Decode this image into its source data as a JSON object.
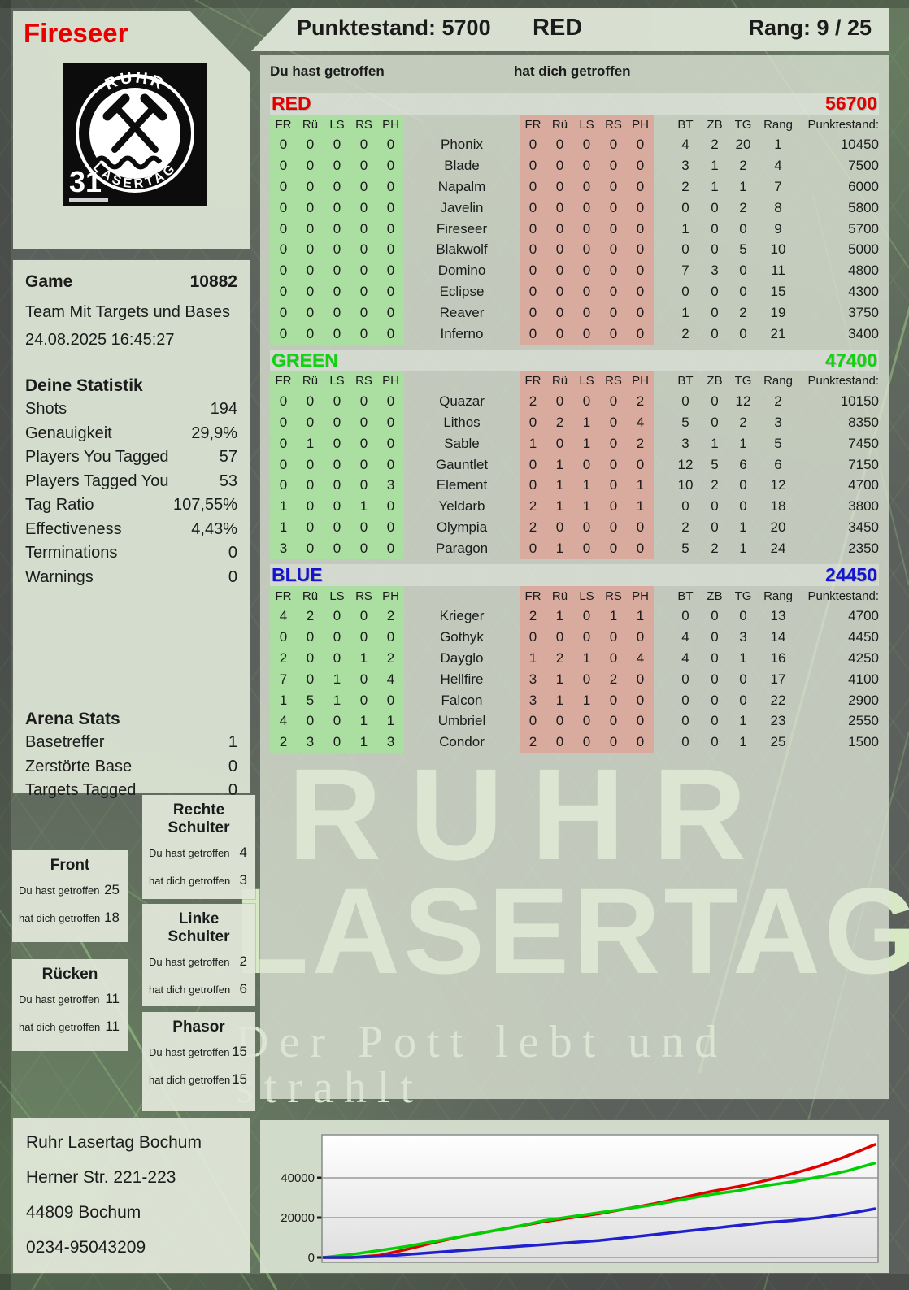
{
  "header": {
    "player_name": "Fireseer",
    "points_label": "Punktestand: 5700",
    "team_name": "RED",
    "rank_label": "Rang: 9 / 25"
  },
  "logo": {
    "top_text": "RUHR",
    "bottom_text": "LASERTAG",
    "badge_number": "31"
  },
  "game_info": {
    "label": "Game",
    "number": "10882",
    "mode": "Team Mit Targets und Bases",
    "datetime": "24.08.2025 16:45:27"
  },
  "your_stats": {
    "title": "Deine Statistik",
    "rows": [
      {
        "label": "Shots",
        "value": "194"
      },
      {
        "label": "Genauigkeit",
        "value": "29,9%"
      },
      {
        "label": "Players You Tagged",
        "value": "57"
      },
      {
        "label": "Players Tagged You",
        "value": "53"
      },
      {
        "label": "Tag Ratio",
        "value": "107,55%"
      },
      {
        "label": "Effectiveness",
        "value": "4,43%"
      },
      {
        "label": "Terminations",
        "value": "0"
      },
      {
        "label": "Warnings",
        "value": "0"
      }
    ]
  },
  "arena_stats": {
    "title": "Arena Stats",
    "rows": [
      {
        "label": "Basetreffer",
        "value": "1"
      },
      {
        "label": "Zerstörte Base",
        "value": "0"
      },
      {
        "label": "Targets Tagged",
        "value": "0"
      }
    ]
  },
  "hit_zones": {
    "du_label": "Du hast getroffen",
    "dich_label": "hat dich getroffen",
    "boxes": [
      {
        "title": "Front",
        "du": "25",
        "dich": "18"
      },
      {
        "title": "Rücken",
        "du": "11",
        "dich": "11"
      },
      {
        "title": "Rechte Schulter",
        "du": "4",
        "dich": "3"
      },
      {
        "title": "Linke Schulter",
        "du": "2",
        "dich": "6"
      },
      {
        "title": "Phasor",
        "du": "15",
        "dich": "15"
      }
    ]
  },
  "address": {
    "lines": [
      "Ruhr Lasertag Bochum",
      "Herner Str. 221-223",
      "44809 Bochum",
      "0234-95043209"
    ]
  },
  "watermark": {
    "line1": "RUHR",
    "line2": "LASERTAG",
    "tagline": "Der Pott lebt und strahlt"
  },
  "scoreboard": {
    "du_col_label": "Du hast getroffen",
    "dich_col_label": "hat dich getroffen",
    "hit_headers": [
      "FR",
      "Rü",
      "LS",
      "RS",
      "PH"
    ],
    "stat_headers": [
      "BT",
      "ZB",
      "TG",
      "Rang",
      "Punktestand:"
    ],
    "teams": [
      {
        "name": "RED",
        "color": "#e10000",
        "total": "56700",
        "players": [
          {
            "name": "Phonix",
            "du": [
              0,
              0,
              0,
              0,
              0
            ],
            "dich": [
              0,
              0,
              0,
              0,
              0
            ],
            "bt": 4,
            "zb": 2,
            "tg": 20,
            "rang": 1,
            "punkte": "10450"
          },
          {
            "name": "Blade",
            "du": [
              0,
              0,
              0,
              0,
              0
            ],
            "dich": [
              0,
              0,
              0,
              0,
              0
            ],
            "bt": 3,
            "zb": 1,
            "tg": 2,
            "rang": 4,
            "punkte": "7500"
          },
          {
            "name": "Napalm",
            "du": [
              0,
              0,
              0,
              0,
              0
            ],
            "dich": [
              0,
              0,
              0,
              0,
              0
            ],
            "bt": 2,
            "zb": 1,
            "tg": 1,
            "rang": 7,
            "punkte": "6000"
          },
          {
            "name": "Javelin",
            "du": [
              0,
              0,
              0,
              0,
              0
            ],
            "dich": [
              0,
              0,
              0,
              0,
              0
            ],
            "bt": 0,
            "zb": 0,
            "tg": 2,
            "rang": 8,
            "punkte": "5800"
          },
          {
            "name": "Fireseer",
            "du": [
              0,
              0,
              0,
              0,
              0
            ],
            "dich": [
              0,
              0,
              0,
              0,
              0
            ],
            "bt": 1,
            "zb": 0,
            "tg": 0,
            "rang": 9,
            "punkte": "5700"
          },
          {
            "name": "Blakwolf",
            "du": [
              0,
              0,
              0,
              0,
              0
            ],
            "dich": [
              0,
              0,
              0,
              0,
              0
            ],
            "bt": 0,
            "zb": 0,
            "tg": 5,
            "rang": 10,
            "punkte": "5000"
          },
          {
            "name": "Domino",
            "du": [
              0,
              0,
              0,
              0,
              0
            ],
            "dich": [
              0,
              0,
              0,
              0,
              0
            ],
            "bt": 7,
            "zb": 3,
            "tg": 0,
            "rang": 11,
            "punkte": "4800"
          },
          {
            "name": "Eclipse",
            "du": [
              0,
              0,
              0,
              0,
              0
            ],
            "dich": [
              0,
              0,
              0,
              0,
              0
            ],
            "bt": 0,
            "zb": 0,
            "tg": 0,
            "rang": 15,
            "punkte": "4300"
          },
          {
            "name": "Reaver",
            "du": [
              0,
              0,
              0,
              0,
              0
            ],
            "dich": [
              0,
              0,
              0,
              0,
              0
            ],
            "bt": 1,
            "zb": 0,
            "tg": 2,
            "rang": 19,
            "punkte": "3750"
          },
          {
            "name": "Inferno",
            "du": [
              0,
              0,
              0,
              0,
              0
            ],
            "dich": [
              0,
              0,
              0,
              0,
              0
            ],
            "bt": 2,
            "zb": 0,
            "tg": 0,
            "rang": 21,
            "punkte": "3400"
          }
        ]
      },
      {
        "name": "GREEN",
        "color": "#10d310",
        "total": "47400",
        "players": [
          {
            "name": "Quazar",
            "du": [
              0,
              0,
              0,
              0,
              0
            ],
            "dich": [
              2,
              0,
              0,
              0,
              2
            ],
            "bt": 0,
            "zb": 0,
            "tg": 12,
            "rang": 2,
            "punkte": "10150"
          },
          {
            "name": "Lithos",
            "du": [
              0,
              0,
              0,
              0,
              0
            ],
            "dich": [
              0,
              2,
              1,
              0,
              4
            ],
            "bt": 5,
            "zb": 0,
            "tg": 2,
            "rang": 3,
            "punkte": "8350"
          },
          {
            "name": "Sable",
            "du": [
              0,
              1,
              0,
              0,
              0
            ],
            "dich": [
              1,
              0,
              1,
              0,
              2
            ],
            "bt": 3,
            "zb": 1,
            "tg": 1,
            "rang": 5,
            "punkte": "7450"
          },
          {
            "name": "Gauntlet",
            "du": [
              0,
              0,
              0,
              0,
              0
            ],
            "dich": [
              0,
              1,
              0,
              0,
              0
            ],
            "bt": 12,
            "zb": 5,
            "tg": 6,
            "rang": 6,
            "punkte": "7150"
          },
          {
            "name": "Element",
            "du": [
              0,
              0,
              0,
              0,
              3
            ],
            "dich": [
              0,
              1,
              1,
              0,
              1
            ],
            "bt": 10,
            "zb": 2,
            "tg": 0,
            "rang": 12,
            "punkte": "4700"
          },
          {
            "name": "Yeldarb",
            "du": [
              1,
              0,
              0,
              1,
              0
            ],
            "dich": [
              2,
              1,
              1,
              0,
              1
            ],
            "bt": 0,
            "zb": 0,
            "tg": 0,
            "rang": 18,
            "punkte": "3800"
          },
          {
            "name": "Olympia",
            "du": [
              1,
              0,
              0,
              0,
              0
            ],
            "dich": [
              2,
              0,
              0,
              0,
              0
            ],
            "bt": 2,
            "zb": 0,
            "tg": 1,
            "rang": 20,
            "punkte": "3450"
          },
          {
            "name": "Paragon",
            "du": [
              3,
              0,
              0,
              0,
              0
            ],
            "dich": [
              0,
              1,
              0,
              0,
              0
            ],
            "bt": 5,
            "zb": 2,
            "tg": 1,
            "rang": 24,
            "punkte": "2350"
          }
        ]
      },
      {
        "name": "BLUE",
        "color": "#1414cf",
        "total": "24450",
        "players": [
          {
            "name": "Krieger",
            "du": [
              4,
              2,
              0,
              0,
              2
            ],
            "dich": [
              2,
              1,
              0,
              1,
              1
            ],
            "bt": 0,
            "zb": 0,
            "tg": 0,
            "rang": 13,
            "punkte": "4700"
          },
          {
            "name": "Gothyk",
            "du": [
              0,
              0,
              0,
              0,
              0
            ],
            "dich": [
              0,
              0,
              0,
              0,
              0
            ],
            "bt": 4,
            "zb": 0,
            "tg": 3,
            "rang": 14,
            "punkte": "4450"
          },
          {
            "name": "Dayglo",
            "du": [
              2,
              0,
              0,
              1,
              2
            ],
            "dich": [
              1,
              2,
              1,
              0,
              4
            ],
            "bt": 4,
            "zb": 0,
            "tg": 1,
            "rang": 16,
            "punkte": "4250"
          },
          {
            "name": "Hellfire",
            "du": [
              7,
              0,
              1,
              0,
              4
            ],
            "dich": [
              3,
              1,
              0,
              2,
              0
            ],
            "bt": 0,
            "zb": 0,
            "tg": 0,
            "rang": 17,
            "punkte": "4100"
          },
          {
            "name": "Falcon",
            "du": [
              1,
              5,
              1,
              0,
              0
            ],
            "dich": [
              3,
              1,
              1,
              0,
              0
            ],
            "bt": 0,
            "zb": 0,
            "tg": 0,
            "rang": 22,
            "punkte": "2900"
          },
          {
            "name": "Umbriel",
            "du": [
              4,
              0,
              0,
              1,
              1
            ],
            "dich": [
              0,
              0,
              0,
              0,
              0
            ],
            "bt": 0,
            "zb": 0,
            "tg": 1,
            "rang": 23,
            "punkte": "2550"
          },
          {
            "name": "Condor",
            "du": [
              2,
              3,
              0,
              1,
              3
            ],
            "dich": [
              2,
              0,
              0,
              0,
              0
            ],
            "bt": 0,
            "zb": 0,
            "tg": 1,
            "rang": 25,
            "punkte": "1500"
          }
        ]
      }
    ]
  },
  "chart_data": {
    "type": "line",
    "title": "",
    "xlabel": "",
    "ylabel": "",
    "ylim": [
      0,
      60000
    ],
    "yticks": [
      0,
      20000,
      40000
    ],
    "grid": true,
    "legend_position": "none",
    "series": [
      {
        "name": "RED",
        "color": "#e00000",
        "values": [
          0,
          0,
          1000,
          4000,
          7500,
          10500,
          13000,
          15500,
          18000,
          20000,
          22000,
          24500,
          27000,
          30000,
          33000,
          35500,
          38500,
          42000,
          46000,
          51000,
          56700
        ]
      },
      {
        "name": "GREEN",
        "color": "#00cf00",
        "values": [
          0,
          1500,
          3500,
          5500,
          8000,
          10500,
          13000,
          15500,
          18500,
          20500,
          22500,
          24500,
          26500,
          29000,
          31500,
          33500,
          36000,
          38000,
          40500,
          43500,
          47400
        ]
      },
      {
        "name": "BLUE",
        "color": "#2020cc",
        "values": [
          0,
          0,
          500,
          1500,
          2500,
          3500,
          4500,
          5500,
          6500,
          7500,
          8500,
          10000,
          11500,
          13000,
          14500,
          16000,
          17500,
          18500,
          20000,
          22000,
          24450
        ]
      }
    ]
  }
}
